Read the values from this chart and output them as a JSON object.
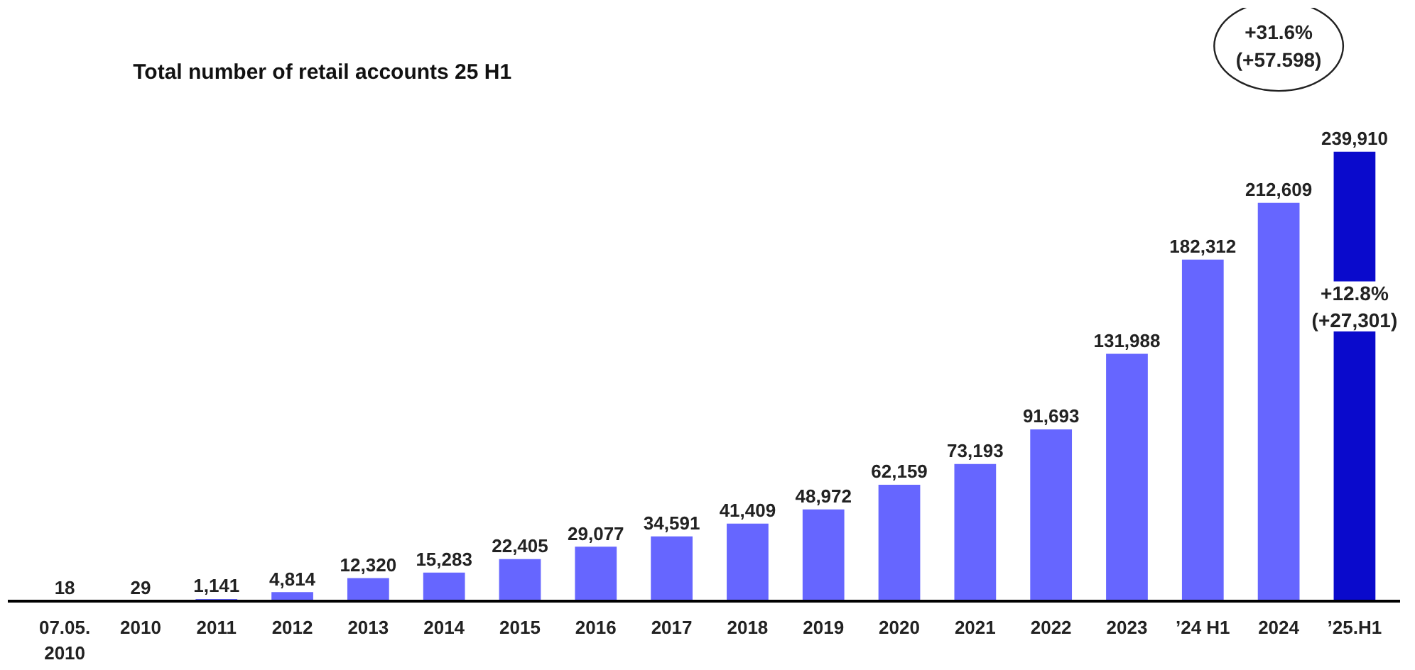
{
  "chart_data": {
    "type": "bar",
    "title": "Total number of retail accounts 25 H1",
    "categories": [
      "07.05.\n2010",
      "2010",
      "2011",
      "2012",
      "2013",
      "2014",
      "2015",
      "2016",
      "2017",
      "2018",
      "2019",
      "2020",
      "2021",
      "2022",
      "2023",
      "’24 H1",
      "2024",
      "’25.H1"
    ],
    "values": [
      18,
      29,
      1141,
      4814,
      12320,
      15283,
      22405,
      29077,
      34591,
      41409,
      48972,
      62159,
      73193,
      91693,
      131988,
      182312,
      212609,
      239910
    ],
    "colors": [
      "#6666ff",
      "#6666ff",
      "#6666ff",
      "#6666ff",
      "#6666ff",
      "#6666ff",
      "#6666ff",
      "#6666ff",
      "#6666ff",
      "#6666ff",
      "#6666ff",
      "#6666ff",
      "#6666ff",
      "#6666ff",
      "#6666ff",
      "#6666ff",
      "#6666ff",
      "#0a0acc"
    ],
    "value_labels": [
      "18",
      "29",
      "1,141",
      "4,814",
      "12,320",
      "15,283",
      "22,405",
      "29,077",
      "34,591",
      "41,409",
      "48,972",
      "62,159",
      "73,193",
      "91,693",
      "131,988",
      "182,312",
      "212,609",
      "239,910"
    ],
    "annotations": [
      "+31.6%\n(+57.598)",
      "+12.8%\n(+27,301)"
    ]
  }
}
